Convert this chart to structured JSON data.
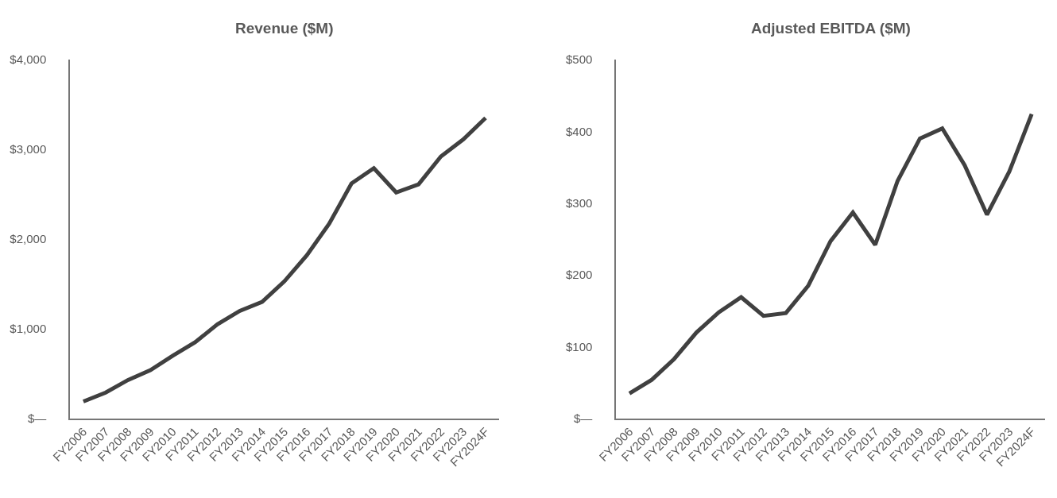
{
  "chart_data": [
    {
      "type": "line",
      "title": "Revenue ($M)",
      "categories": [
        "FY2006",
        "FY2007",
        "FY2008",
        "FY2009",
        "FY2010",
        "FY2011",
        "FY2012",
        "FY2013",
        "FY2014",
        "FY2015",
        "FY2016",
        "FY2017",
        "FY2018",
        "FY2019",
        "FY2020",
        "FY2021",
        "FY2022",
        "FY2023",
        "FY2024F"
      ],
      "series": [
        {
          "color": "#404040",
          "values": [
            190,
            290,
            430,
            540,
            700,
            850,
            1050,
            1200,
            1300,
            1530,
            1820,
            2170,
            2620,
            2790,
            2520,
            2610,
            2920,
            3110,
            3350
          ]
        }
      ],
      "ylim": [
        0,
        4000
      ],
      "yticks": [
        {
          "value": 0,
          "label": "$—"
        },
        {
          "value": 1000,
          "label": "$1,000"
        },
        {
          "value": 2000,
          "label": "$2,000"
        },
        {
          "value": 3000,
          "label": "$3,000"
        },
        {
          "value": 4000,
          "label": "$4,000"
        }
      ],
      "marker": "none",
      "line_style": "solid"
    },
    {
      "type": "line",
      "title": "Adjusted EBITDA ($M)",
      "categories": [
        "FY2006",
        "FY2007",
        "FY2008",
        "FY2009",
        "FY2010",
        "FY2011",
        "FY2012",
        "FY2013",
        "FY2014",
        "FY2015",
        "FY2016",
        "FY2017",
        "FY2018",
        "FY2019",
        "FY2020",
        "FY2021",
        "FY2022",
        "FY2023",
        "FY2024F"
      ],
      "series": [
        {
          "color": "#404040",
          "values": [
            35,
            54,
            83,
            120,
            148,
            169,
            143,
            147,
            185,
            247,
            287,
            242,
            331,
            390,
            404,
            353,
            284,
            344,
            424
          ]
        }
      ],
      "ylim": [
        0,
        500
      ],
      "yticks": [
        {
          "value": 0,
          "label": "$—"
        },
        {
          "value": 100,
          "label": "$100"
        },
        {
          "value": 200,
          "label": "$200"
        },
        {
          "value": 300,
          "label": "$300"
        },
        {
          "value": 400,
          "label": "$400"
        },
        {
          "value": 500,
          "label": "$500"
        }
      ],
      "marker": "none",
      "line_style": "solid"
    }
  ]
}
